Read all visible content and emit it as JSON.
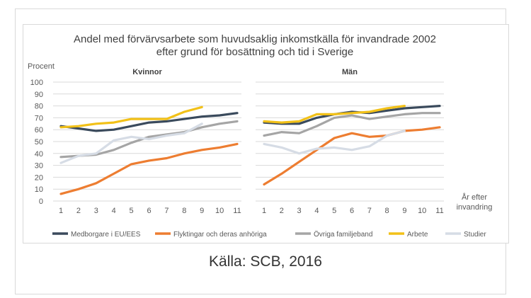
{
  "chart_data": {
    "type": "line",
    "title": "Andel med förvärvsarbete som huvudsaklig inkomstkälla för invandrade 2002",
    "subtitle": "efter grund för bosättning och tid i Sverige",
    "ylabel": "Procent",
    "xlabel_line1": "År efter",
    "xlabel_line2": "invandring",
    "ylim": [
      0,
      100
    ],
    "y_ticks": [
      0,
      10,
      20,
      30,
      40,
      50,
      60,
      70,
      80,
      90,
      100
    ],
    "x": [
      1,
      2,
      3,
      4,
      5,
      6,
      7,
      8,
      9,
      10,
      11
    ],
    "legend_position": "bottom",
    "series_meta": [
      {
        "name": "Medborgare i EU/EES",
        "color": "#3a4a5c"
      },
      {
        "name": "Flyktingar och deras anhöriga",
        "color": "#ed7d31"
      },
      {
        "name": "Övriga familjeband",
        "color": "#a5a5a5"
      },
      {
        "name": "Arbete",
        "color": "#f2c118"
      },
      {
        "name": "Studier",
        "color": "#d6dce5"
      }
    ],
    "panels": [
      {
        "title": "Kvinnor",
        "series": [
          {
            "name": "Medborgare i EU/EES",
            "values": [
              63,
              61,
              59,
              60,
              63,
              66,
              67,
              69,
              71,
              72,
              74
            ]
          },
          {
            "name": "Flyktingar och deras anhöriga",
            "values": [
              6,
              10,
              15,
              23,
              31,
              34,
              36,
              40,
              43,
              45,
              48
            ]
          },
          {
            "name": "Övriga familjeband",
            "values": [
              37,
              38,
              39,
              43,
              49,
              54,
              56,
              58,
              62,
              65,
              67
            ]
          },
          {
            "name": "Arbete",
            "values": [
              62,
              63,
              65,
              66,
              69,
              69,
              69,
              75,
              79,
              null,
              null
            ]
          },
          {
            "name": "Studier",
            "values": [
              32,
              38,
              40,
              51,
              54,
              52,
              55,
              57,
              65,
              null,
              null
            ]
          }
        ]
      },
      {
        "title": "Män",
        "series": [
          {
            "name": "Medborgare i EU/EES",
            "values": [
              66,
              65,
              65,
              70,
              73,
              75,
              74,
              76,
              78,
              79,
              80
            ]
          },
          {
            "name": "Flyktingar och deras anhöriga",
            "values": [
              14,
              23,
              33,
              43,
              53,
              57,
              54,
              55,
              59,
              60,
              62
            ]
          },
          {
            "name": "Övriga familjeband",
            "values": [
              55,
              58,
              57,
              63,
              70,
              72,
              69,
              71,
              73,
              74,
              74
            ]
          },
          {
            "name": "Arbete",
            "values": [
              67,
              66,
              67,
              73,
              73,
              74,
              75,
              78,
              80,
              null,
              null
            ]
          },
          {
            "name": "Studier",
            "values": [
              48,
              45,
              40,
              44,
              45,
              43,
              46,
              55,
              59,
              null,
              null
            ]
          }
        ]
      }
    ]
  },
  "source": "Källa: SCB, 2016"
}
